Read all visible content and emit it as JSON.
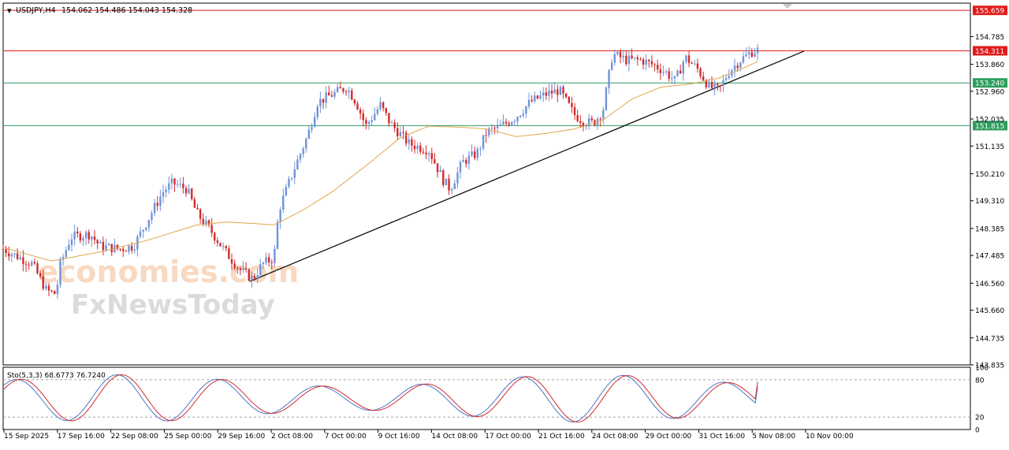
{
  "header": {
    "symbol": "USDJPY,H4",
    "ohlc": "154.062 154.486 154.043 154.328"
  },
  "oscillator": {
    "label": "Sto(5,3,3) 68.6773 76.7240",
    "levels": [
      "100",
      "80",
      "20",
      "0"
    ]
  },
  "watermark": {
    "line1": "economies.com",
    "line2": "FxNewsToday"
  },
  "colors": {
    "bull": "#6f93d8",
    "bear": "#d42a2a",
    "ma": "#e0a64a",
    "resistance": "#e01b1b",
    "support": "#2e9e5e",
    "trendline": "#000000",
    "stoch_main": "#4a78c8",
    "stoch_signal": "#d42a2a"
  },
  "chart_data": {
    "type": "candlestick",
    "symbol": "USDJPY",
    "timeframe": "H4",
    "y_ticks": [
      154.785,
      153.86,
      152.96,
      152.035,
      151.135,
      150.21,
      149.31,
      148.385,
      147.485,
      146.56,
      145.66,
      144.735,
      143.835
    ],
    "y_range": [
      143.835,
      155.9
    ],
    "x_ticks": [
      "15 Sep 2025",
      "17 Sep 16:00",
      "22 Sep 08:00",
      "25 Sep 00:00",
      "29 Sep 16:00",
      "2 Oct 08:00",
      "7 Oct 00:00",
      "9 Oct 16:00",
      "14 Oct 08:00",
      "17 Oct 00:00",
      "21 Oct 16:00",
      "24 Oct 08:00",
      "29 Oct 00:00",
      "31 Oct 16:00",
      "5 Nov 08:00",
      "10 Nov 00:00"
    ],
    "horizontal_levels": [
      {
        "value": 155.659,
        "label": "155.659",
        "color": "#e01b1b"
      },
      {
        "value": 154.311,
        "label": "154.311",
        "color": "#e01b1b"
      },
      {
        "value": 153.24,
        "label": "153.240",
        "color": "#2e9e5e"
      },
      {
        "value": 151.815,
        "label": "151.815",
        "color": "#2e9e5e"
      }
    ],
    "trendline": {
      "x": [
        0.255,
        0.828
      ],
      "y": [
        146.62,
        154.3
      ]
    },
    "close_path": [
      [
        0.0,
        147.7
      ],
      [
        0.03,
        147.2
      ],
      [
        0.045,
        146.3
      ],
      [
        0.055,
        146.2
      ],
      [
        0.058,
        147.1
      ],
      [
        0.07,
        148.1
      ],
      [
        0.09,
        148.2
      ],
      [
        0.1,
        147.8
      ],
      [
        0.12,
        147.7
      ],
      [
        0.135,
        147.8
      ],
      [
        0.15,
        148.7
      ],
      [
        0.165,
        149.6
      ],
      [
        0.175,
        149.9
      ],
      [
        0.19,
        149.7
      ],
      [
        0.2,
        148.9
      ],
      [
        0.215,
        148.3
      ],
      [
        0.23,
        147.6
      ],
      [
        0.245,
        147.0
      ],
      [
        0.258,
        146.7
      ],
      [
        0.268,
        147.2
      ],
      [
        0.28,
        147.4
      ],
      [
        0.285,
        149.0
      ],
      [
        0.3,
        150.3
      ],
      [
        0.315,
        151.5
      ],
      [
        0.325,
        152.6
      ],
      [
        0.34,
        152.85
      ],
      [
        0.355,
        153.1
      ],
      [
        0.365,
        152.6
      ],
      [
        0.375,
        151.8
      ],
      [
        0.39,
        152.5
      ],
      [
        0.4,
        151.9
      ],
      [
        0.42,
        151.2
      ],
      [
        0.44,
        151.0
      ],
      [
        0.455,
        150.0
      ],
      [
        0.462,
        149.7
      ],
      [
        0.475,
        150.6
      ],
      [
        0.49,
        150.9
      ],
      [
        0.5,
        151.6
      ],
      [
        0.515,
        151.8
      ],
      [
        0.53,
        152.1
      ],
      [
        0.545,
        152.6
      ],
      [
        0.56,
        152.85
      ],
      [
        0.575,
        153.0
      ],
      [
        0.59,
        152.2
      ],
      [
        0.6,
        151.95
      ],
      [
        0.61,
        151.9
      ],
      [
        0.62,
        152.3
      ],
      [
        0.63,
        154.2
      ],
      [
        0.645,
        154.0
      ],
      [
        0.66,
        154.0
      ],
      [
        0.675,
        153.8
      ],
      [
        0.685,
        153.6
      ],
      [
        0.695,
        153.3
      ],
      [
        0.705,
        154.1
      ],
      [
        0.718,
        153.7
      ],
      [
        0.73,
        153.1
      ],
      [
        0.74,
        153.0
      ],
      [
        0.75,
        153.6
      ],
      [
        0.762,
        154.0
      ],
      [
        0.775,
        154.3
      ],
      [
        0.78,
        154.33
      ]
    ],
    "ma_path": [
      [
        0.0,
        147.75
      ],
      [
        0.05,
        147.3
      ],
      [
        0.1,
        147.6
      ],
      [
        0.15,
        148.0
      ],
      [
        0.2,
        148.5
      ],
      [
        0.23,
        148.6
      ],
      [
        0.26,
        148.55
      ],
      [
        0.28,
        148.5
      ],
      [
        0.31,
        149.0
      ],
      [
        0.34,
        149.6
      ],
      [
        0.38,
        150.6
      ],
      [
        0.41,
        151.4
      ],
      [
        0.44,
        151.8
      ],
      [
        0.48,
        151.75
      ],
      [
        0.5,
        151.7
      ],
      [
        0.53,
        151.45
      ],
      [
        0.56,
        151.55
      ],
      [
        0.59,
        151.7
      ],
      [
        0.62,
        152.0
      ],
      [
        0.65,
        152.7
      ],
      [
        0.68,
        153.1
      ],
      [
        0.71,
        153.2
      ],
      [
        0.74,
        153.4
      ],
      [
        0.77,
        153.8
      ],
      [
        0.78,
        153.95
      ]
    ],
    "oscillator": {
      "name": "Sto(5,3,3)",
      "main": 68.6773,
      "signal": 76.724,
      "levels": [
        80,
        20
      ],
      "range": [
        0,
        100
      ]
    }
  }
}
